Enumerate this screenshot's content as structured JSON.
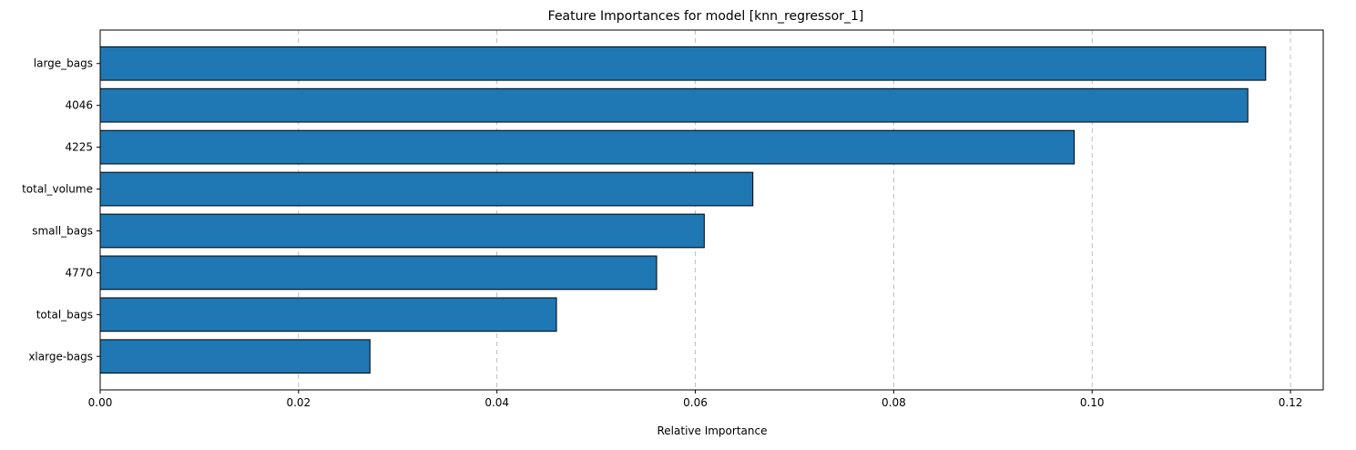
{
  "chart_data": {
    "type": "bar",
    "orientation": "horizontal",
    "title": "Feature Importances for model [knn_regressor_1]",
    "xlabel": "Relative Importance",
    "ylabel": "",
    "categories": [
      "large_bags",
      "4046",
      "4225",
      "total_volume",
      "small_bags",
      "4770",
      "total_bags",
      "xlarge-bags"
    ],
    "values": [
      0.1175,
      0.1157,
      0.0982,
      0.0658,
      0.0609,
      0.0561,
      0.046,
      0.0272
    ],
    "xlim": [
      0.0,
      0.1233
    ],
    "x_ticks": [
      0.0,
      0.02,
      0.04,
      0.06,
      0.08,
      0.1,
      0.12
    ],
    "x_tick_labels": [
      "0.00",
      "0.02",
      "0.04",
      "0.06",
      "0.08",
      "0.10",
      "0.12"
    ],
    "grid": "x-axis dashed",
    "bar_color": "#1f77b4",
    "bar_edge_color": "#000000",
    "grid_color": "#b0b0b0"
  }
}
